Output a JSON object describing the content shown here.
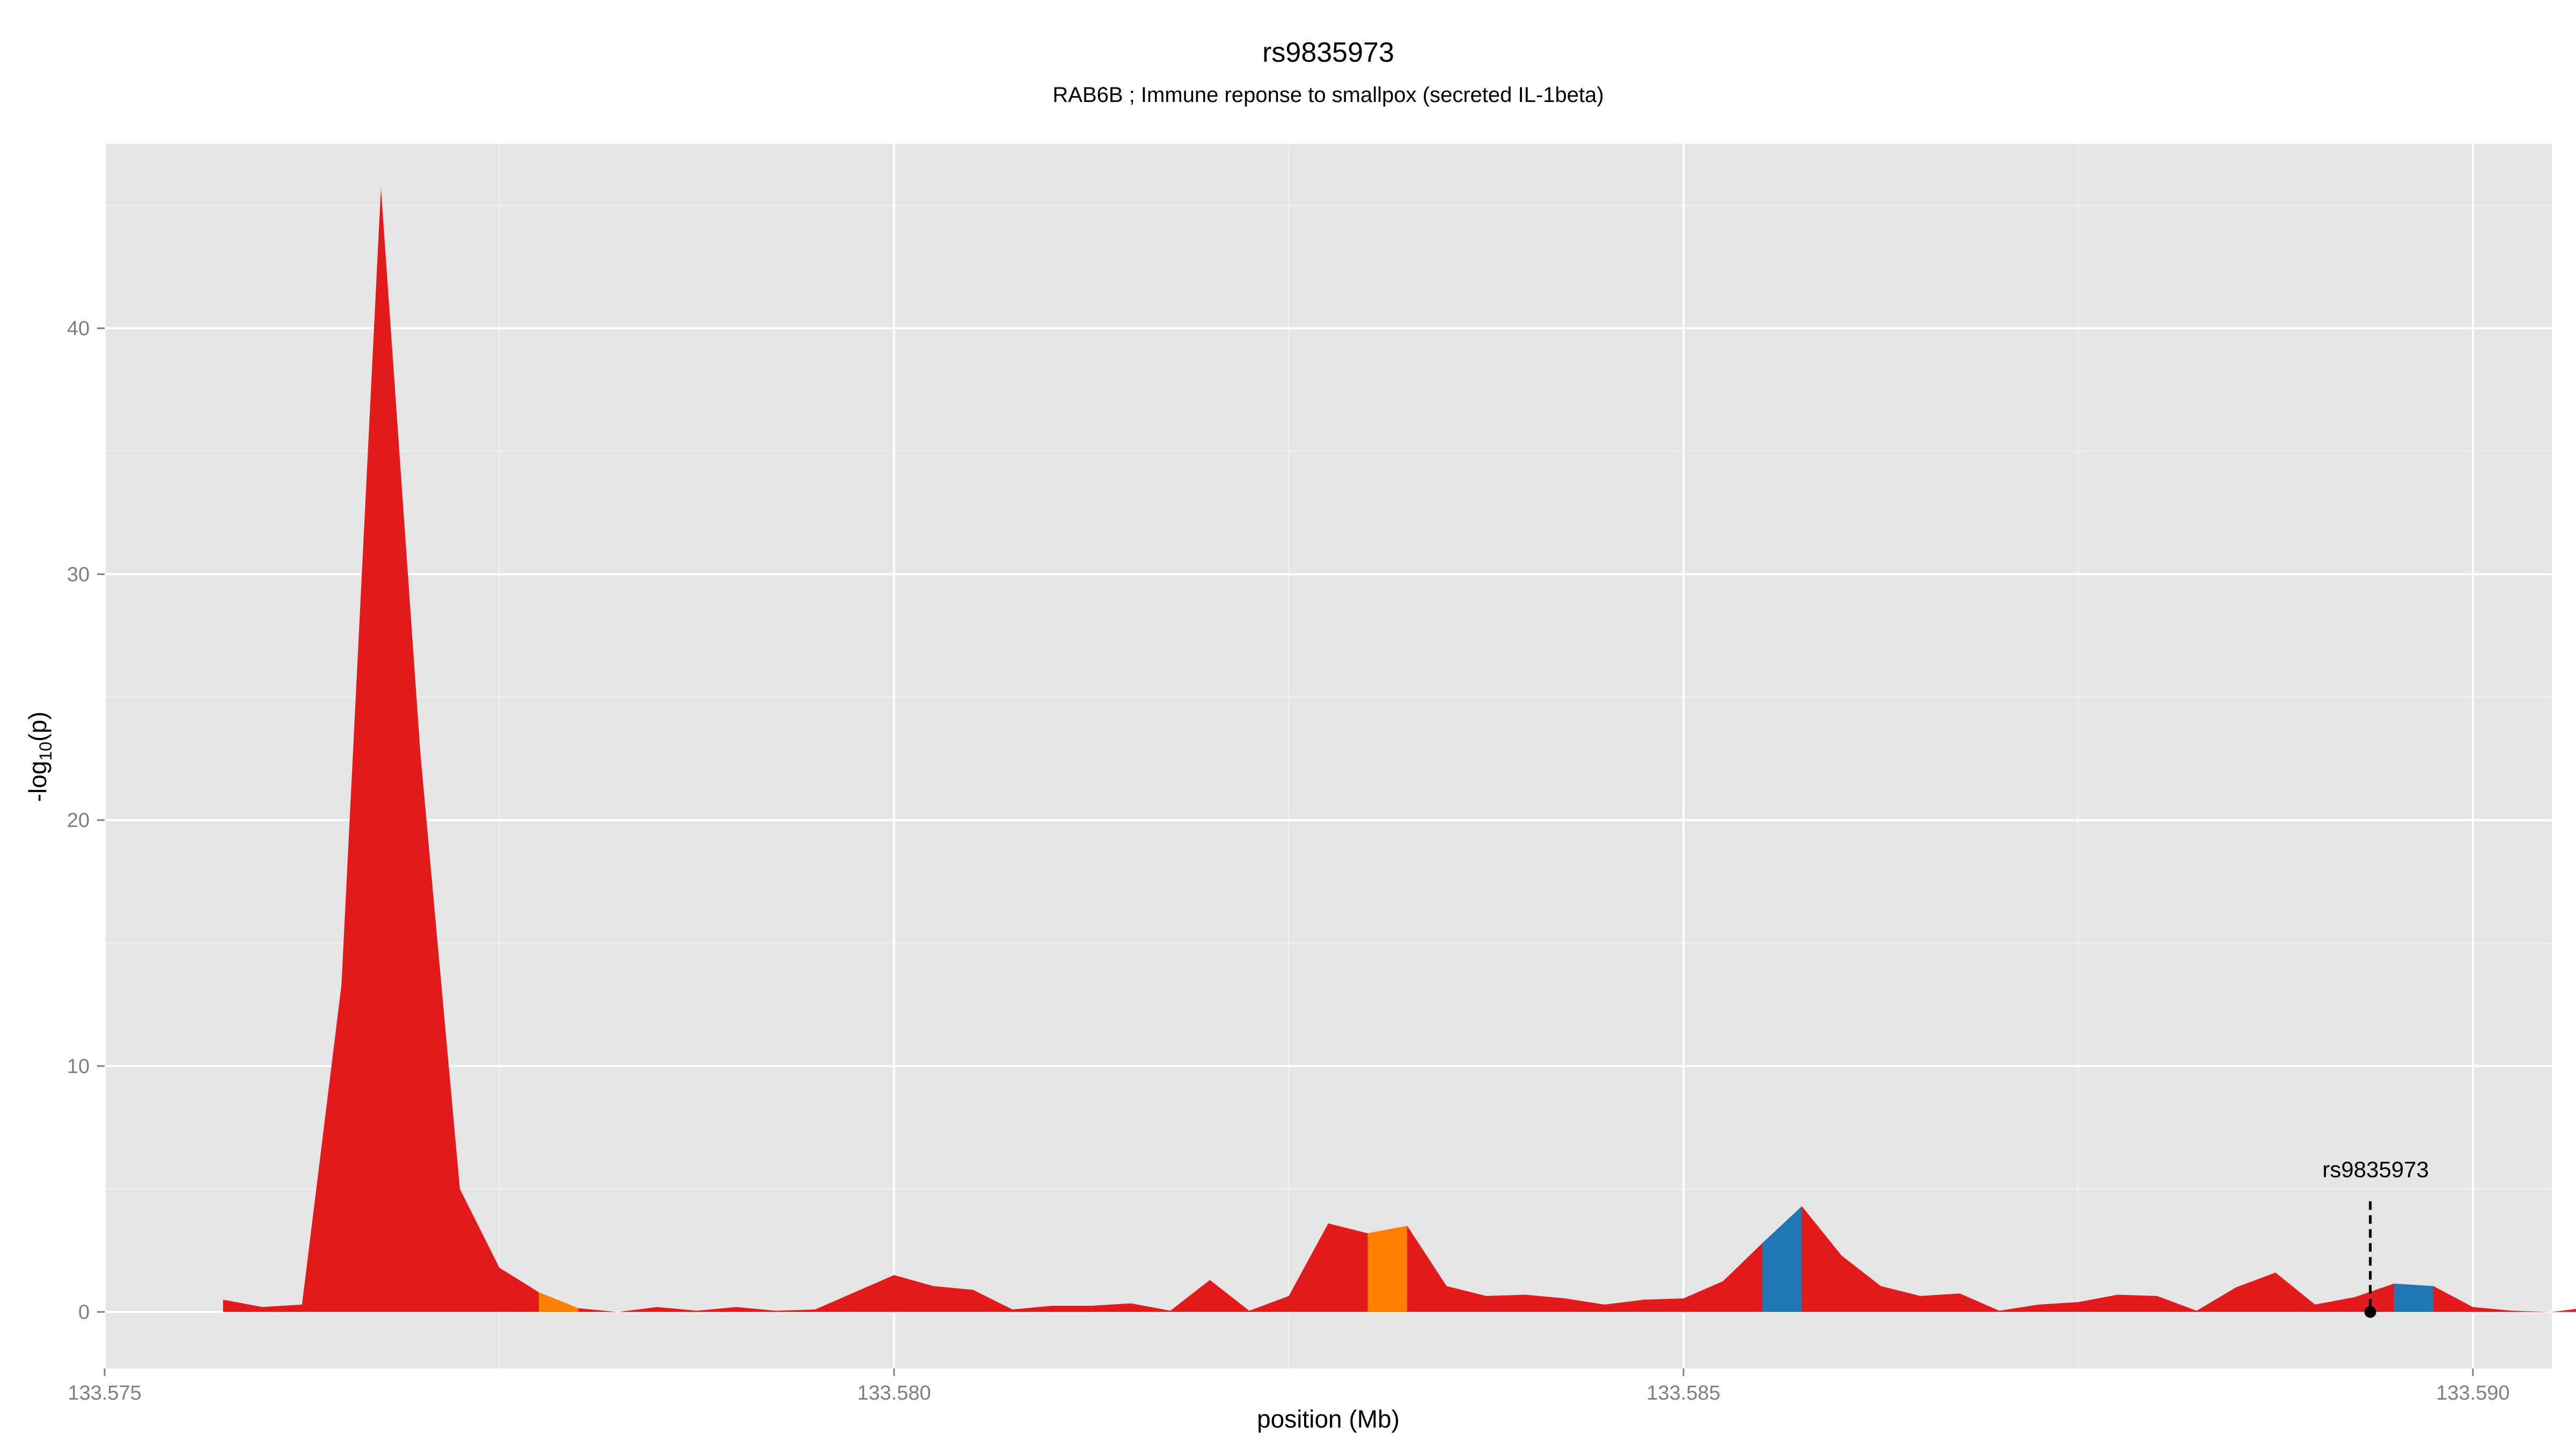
{
  "chart_data": {
    "type": "area",
    "title": "rs9835973",
    "subtitle": "RAB6B ; Immune reponse to smallpox (secreted IL-1beta)",
    "xlabel": "position (Mb)",
    "ylabel_main": "-log",
    "ylabel_sub": "10",
    "ylabel_tail": "(p)",
    "xlim": [
      133.575,
      133.5905
    ],
    "ylim": [
      -2.3,
      47.5
    ],
    "x_ticks": [
      {
        "value": 133.575,
        "label": "133.575"
      },
      {
        "value": 133.58,
        "label": "133.580"
      },
      {
        "value": 133.585,
        "label": "133.585"
      },
      {
        "value": 133.59,
        "label": "133.590"
      }
    ],
    "y_ticks": [
      {
        "value": 0,
        "label": "0"
      },
      {
        "value": 10,
        "label": "10"
      },
      {
        "value": 20,
        "label": "20"
      },
      {
        "value": 30,
        "label": "30"
      },
      {
        "value": 40,
        "label": "40"
      }
    ],
    "grid": true,
    "colors": {
      "panel": "#e5e5e5",
      "grid_major": "#ffffff",
      "grid_minor": "#f2f2f2",
      "red": "#e31a1c",
      "orange": "#ff7f00",
      "blue": "#1f78b4",
      "annotation": "#000000",
      "tick_text": "#7f7f7f"
    },
    "points": [
      [
        133.57575,
        0.5
      ],
      [
        133.576,
        0.2
      ],
      [
        133.57625,
        0.3
      ],
      [
        133.5765,
        13.3
      ],
      [
        133.57675,
        45.7
      ],
      [
        133.577,
        22.7
      ],
      [
        133.57725,
        5.0
      ],
      [
        133.5775,
        1.8
      ],
      [
        133.57775,
        0.8
      ],
      [
        133.578,
        0.15
      ],
      [
        133.57825,
        0.0
      ],
      [
        133.5785,
        0.2
      ],
      [
        133.57875,
        0.05
      ],
      [
        133.579,
        0.2
      ],
      [
        133.57925,
        0.05
      ],
      [
        133.5795,
        0.1
      ],
      [
        133.57975,
        0.8
      ],
      [
        133.58,
        1.5
      ],
      [
        133.58025,
        1.05
      ],
      [
        133.5805,
        0.9
      ],
      [
        133.58075,
        0.1
      ],
      [
        133.581,
        0.25
      ],
      [
        133.58125,
        0.25
      ],
      [
        133.5815,
        0.35
      ],
      [
        133.58175,
        0.05
      ],
      [
        133.582,
        1.3
      ],
      [
        133.58225,
        0.05
      ],
      [
        133.5825,
        0.65
      ],
      [
        133.58275,
        3.6
      ],
      [
        133.583,
        3.2
      ],
      [
        133.58325,
        3.5
      ],
      [
        133.5835,
        1.05
      ],
      [
        133.58375,
        0.65
      ],
      [
        133.584,
        0.7
      ],
      [
        133.58425,
        0.55
      ],
      [
        133.5845,
        0.3
      ],
      [
        133.58475,
        0.5
      ],
      [
        133.585,
        0.55
      ],
      [
        133.58525,
        1.25
      ],
      [
        133.5855,
        2.8
      ],
      [
        133.58575,
        4.3
      ],
      [
        133.586,
        2.3
      ],
      [
        133.58625,
        1.05
      ],
      [
        133.5865,
        0.65
      ],
      [
        133.58675,
        0.75
      ],
      [
        133.587,
        0.05
      ],
      [
        133.58725,
        0.3
      ],
      [
        133.5875,
        0.4
      ],
      [
        133.58775,
        0.7
      ],
      [
        133.588,
        0.65
      ],
      [
        133.58825,
        0.05
      ],
      [
        133.5885,
        1.0
      ],
      [
        133.58875,
        1.6
      ],
      [
        133.589,
        0.3
      ],
      [
        133.58925,
        0.6
      ],
      [
        133.5895,
        1.15
      ],
      [
        133.58975,
        1.05
      ],
      [
        133.59,
        0.2
      ],
      [
        133.59025,
        0.05
      ],
      [
        133.5905,
        0.0
      ],
      [
        133.59075,
        0.2
      ]
    ],
    "highlight_segments": [
      {
        "x_start": 133.57775,
        "x_end": 133.578,
        "color": "orange"
      },
      {
        "x_start": 133.583,
        "x_end": 133.58325,
        "color": "orange"
      },
      {
        "x_start": 133.5855,
        "x_end": 133.58575,
        "color": "blue"
      },
      {
        "x_start": 133.5895,
        "x_end": 133.58975,
        "color": "blue"
      }
    ],
    "annotation": {
      "label": "rs9835973",
      "x": 133.58935,
      "y": 0,
      "line_top_y": 4.5
    }
  }
}
